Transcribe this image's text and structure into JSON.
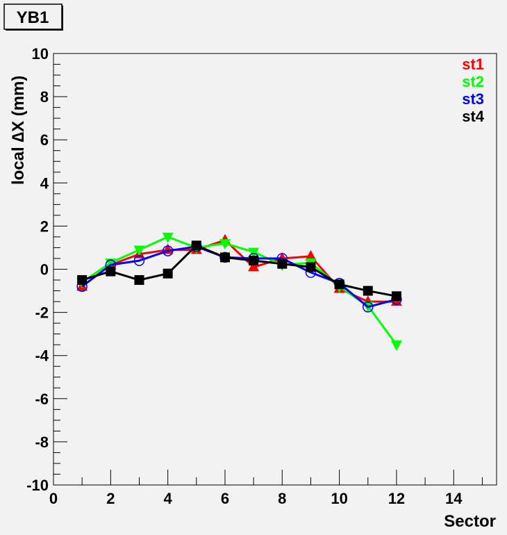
{
  "chart_data": {
    "type": "line",
    "title": "YB1",
    "xlabel": "Sector",
    "ylabel": "local ∆X (mm)",
    "xlim": [
      0,
      15.5
    ],
    "ylim": [
      -10,
      10
    ],
    "xticks": [
      0,
      2,
      4,
      6,
      8,
      10,
      12,
      14
    ],
    "yticks": [
      -10,
      -8,
      -6,
      -4,
      -2,
      0,
      2,
      4,
      6,
      8,
      10
    ],
    "grid": false,
    "legend_position": "top-right",
    "series": [
      {
        "name": "st1",
        "color": "#ff0000",
        "marker": "triangle-up",
        "x": [
          1,
          2,
          3,
          4,
          5,
          6,
          7,
          8,
          9,
          10,
          11,
          12
        ],
        "y": [
          -0.8,
          0.2,
          0.7,
          0.9,
          0.9,
          1.35,
          0.1,
          0.5,
          0.6,
          -0.9,
          -1.5,
          -1.5
        ]
      },
      {
        "name": "st2",
        "color": "#00ff00",
        "marker": "triangle-down",
        "x": [
          1,
          2,
          3,
          4,
          5,
          6,
          7,
          8,
          9,
          10,
          11,
          12
        ],
        "y": [
          -0.6,
          0.3,
          0.9,
          1.5,
          1.0,
          1.2,
          0.8,
          0.2,
          0.3,
          -0.8,
          -1.7,
          -3.5
        ]
      },
      {
        "name": "st3",
        "color": "#0000ff",
        "marker": "circle-open",
        "x": [
          1,
          2,
          3,
          4,
          5,
          6,
          7,
          8,
          9,
          10,
          11,
          12
        ],
        "y": [
          -0.8,
          0.2,
          0.4,
          0.85,
          1.05,
          0.55,
          0.5,
          0.5,
          -0.15,
          -0.65,
          -1.75,
          -1.4
        ]
      },
      {
        "name": "st4",
        "color": "#000000",
        "marker": "square",
        "x": [
          1,
          2,
          3,
          4,
          5,
          6,
          7,
          8,
          9,
          10,
          11,
          12
        ],
        "y": [
          -0.5,
          -0.1,
          -0.5,
          -0.2,
          1.1,
          0.55,
          0.4,
          0.25,
          0.1,
          -0.7,
          -1.0,
          -1.25
        ]
      }
    ]
  }
}
